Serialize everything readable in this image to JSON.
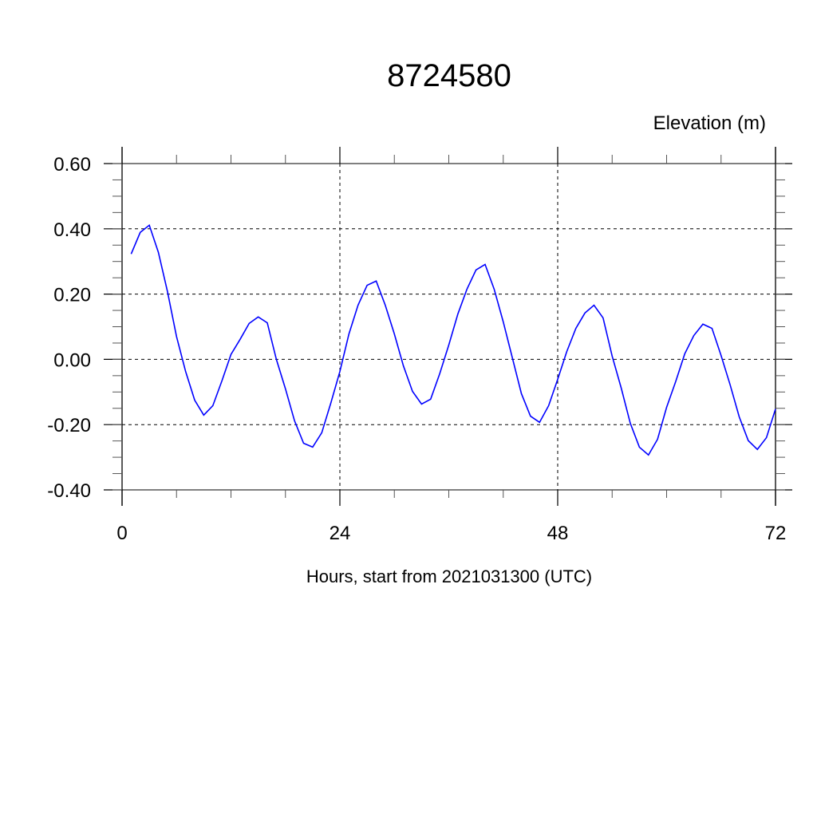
{
  "chart_data": {
    "type": "line",
    "title": "8724580",
    "ylabel": "Elevation (m)",
    "xlabel": "Hours, start from 2021031300 (UTC)",
    "xlim": [
      0,
      72
    ],
    "ylim": [
      -0.4,
      0.6
    ],
    "x_ticks": [
      0,
      24,
      48,
      72
    ],
    "x_tick_labels": [
      "0",
      "24",
      "48",
      "72"
    ],
    "y_ticks": [
      0.6,
      0.4,
      0.2,
      0.0,
      -0.2,
      -0.4
    ],
    "y_tick_labels": [
      "0.60",
      "0.40",
      "0.20",
      "0.00",
      "-0.20",
      "-0.40"
    ],
    "grid": true,
    "series": [
      {
        "color": "#0000ff",
        "x": [
          1,
          2,
          3,
          4,
          5,
          6,
          7,
          8,
          9,
          10,
          11,
          12,
          13,
          14,
          15,
          16,
          17,
          18,
          19,
          20,
          21,
          22,
          23,
          24,
          25,
          26,
          27,
          28,
          29,
          30,
          31,
          32,
          33,
          34,
          35,
          36,
          37,
          38,
          39,
          40,
          41,
          42,
          43,
          44,
          45,
          46,
          47,
          48,
          49,
          50,
          51,
          52,
          53,
          54,
          55,
          56,
          57,
          58,
          59,
          60,
          61,
          62,
          63,
          64,
          65,
          66,
          67,
          68,
          69,
          70,
          71,
          72
        ],
        "values": [
          0.323,
          0.389,
          0.411,
          0.328,
          0.208,
          0.07,
          -0.037,
          -0.125,
          -0.171,
          -0.142,
          -0.066,
          0.015,
          0.061,
          0.11,
          0.13,
          0.112,
          0.0,
          -0.09,
          -0.188,
          -0.257,
          -0.269,
          -0.225,
          -0.134,
          -0.037,
          0.078,
          0.166,
          0.227,
          0.24,
          0.166,
          0.078,
          -0.02,
          -0.098,
          -0.137,
          -0.122,
          -0.044,
          0.044,
          0.139,
          0.215,
          0.274,
          0.291,
          0.215,
          0.115,
          0.005,
          -0.105,
          -0.174,
          -0.193,
          -0.142,
          -0.061,
          0.024,
          0.095,
          0.142,
          0.166,
          0.127,
          0.01,
          -0.088,
          -0.196,
          -0.269,
          -0.293,
          -0.245,
          -0.147,
          -0.068,
          0.017,
          0.073,
          0.108,
          0.095,
          0.012,
          -0.078,
          -0.176,
          -0.249,
          -0.276,
          -0.24,
          -0.152
        ]
      }
    ]
  }
}
